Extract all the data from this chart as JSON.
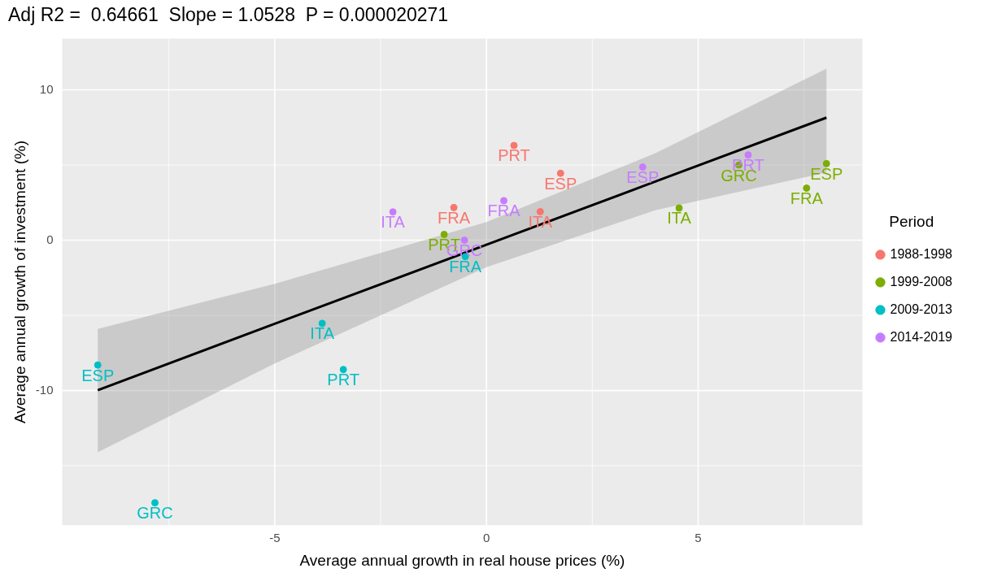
{
  "chart_data": {
    "type": "scatter",
    "title": "Adj R2 =  0.64661  Slope = 1.0528  P = 0.000020271",
    "xlabel": "Average annual growth in real house prices (%)",
    "ylabel": "Average annual growth of investment (%)",
    "legend_title": "Period",
    "legend": "right",
    "grid": true,
    "xlim": [
      -10.02,
      8.88
    ],
    "xticks": [
      -5,
      0,
      5
    ],
    "ylim": [
      -18.95,
      13.4
    ],
    "yticks": [
      -10,
      0,
      10
    ],
    "series": [
      {
        "name": "1988-1998",
        "marker": "circle",
        "color": "#f8766d",
        "x": [
          0.65,
          1.75,
          -0.77,
          1.27
        ],
        "values": [
          6.3,
          4.45,
          2.17,
          1.9
        ]
      },
      {
        "name": "1999-2008",
        "marker": "circle",
        "color": "#7cae00",
        "x": [
          -1.0,
          5.96,
          8.03,
          7.56,
          4.55
        ],
        "values": [
          0.38,
          5.0,
          5.09,
          3.46,
          2.14
        ]
      },
      {
        "name": "2009-2013",
        "marker": "circle",
        "color": "#00bfc4",
        "x": [
          -0.5,
          -3.88,
          -3.38,
          -9.18,
          -7.83
        ],
        "values": [
          -1.09,
          -5.53,
          -8.6,
          -8.3,
          -17.46
        ]
      },
      {
        "name": "2014-2019",
        "marker": "circle",
        "color": "#c77cff",
        "x": [
          -2.21,
          0.41,
          -0.52,
          3.69,
          6.18
        ],
        "values": [
          1.88,
          2.63,
          0.0,
          4.86,
          5.67
        ]
      },
      {
        "type": "line",
        "marker": "none",
        "color": "#000000",
        "x": [
          -9.18,
          -5,
          0,
          4,
          8.03
        ],
        "values": [
          -9.97,
          -5.56,
          -0.3,
          3.91,
          8.15
        ],
        "lower": [
          -14.1,
          -8.2,
          -1.8,
          2.0,
          4.5
        ],
        "upper": [
          -5.9,
          -2.9,
          1.2,
          5.8,
          11.4
        ]
      }
    ],
    "annotations": [
      {
        "text": "PRT",
        "x": 0.65,
        "y": 6.3
      },
      {
        "text": "ESP",
        "x": 1.75,
        "y": 4.45
      },
      {
        "text": "FRA",
        "x": -0.77,
        "y": 2.17
      },
      {
        "text": "ITA",
        "x": 1.27,
        "y": 1.9
      },
      {
        "text": "PRT",
        "x": -1.0,
        "y": 0.38
      },
      {
        "text": "GRC",
        "x": 5.96,
        "y": 5.0
      },
      {
        "text": "ESP",
        "x": 8.03,
        "y": 5.09
      },
      {
        "text": "FRA",
        "x": 7.56,
        "y": 3.46
      },
      {
        "text": "ITA",
        "x": 4.55,
        "y": 2.14
      },
      {
        "text": "FRA",
        "x": -0.5,
        "y": -1.09
      },
      {
        "text": "ITA",
        "x": -3.88,
        "y": -5.53
      },
      {
        "text": "PRT",
        "x": -3.38,
        "y": -8.6
      },
      {
        "text": "ESP",
        "x": -9.18,
        "y": -8.3
      },
      {
        "text": "GRC",
        "x": -7.83,
        "y": -17.46
      },
      {
        "text": "ITA",
        "x": -2.21,
        "y": 1.88
      },
      {
        "text": "FRA",
        "x": 0.41,
        "y": 2.63
      },
      {
        "text": "GRC",
        "x": -0.52,
        "y": 0.0
      },
      {
        "text": "ESP",
        "x": 3.69,
        "y": 4.86
      },
      {
        "text": "PRT",
        "x": 6.18,
        "y": 5.67
      }
    ]
  }
}
